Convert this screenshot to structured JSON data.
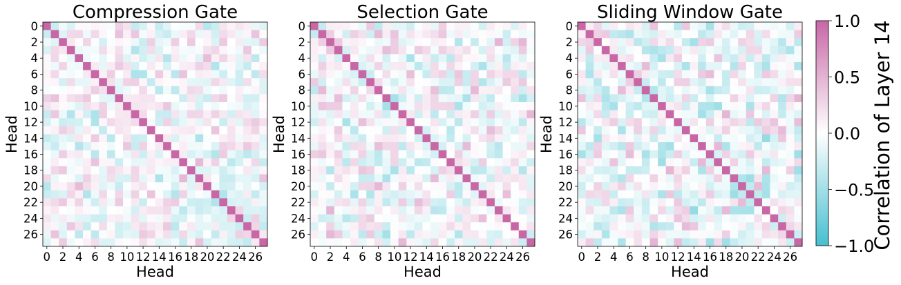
{
  "chart_data": [
    {
      "type": "heatmap",
      "title": "Compression Gate",
      "xlabel": "Head",
      "ylabel": "Head",
      "size": 28,
      "tick_labels": [
        "0",
        "2",
        "4",
        "6",
        "8",
        "10",
        "12",
        "14",
        "16",
        "18",
        "20",
        "22",
        "24",
        "26"
      ],
      "diagonal_value": 1.0,
      "offdiag_seed": 1,
      "offdiag_range": [
        -0.5,
        0.5
      ],
      "offdiag_note": "off-diagonal values are small correlations, mostly between -0.5 and 0.5"
    },
    {
      "type": "heatmap",
      "title": "Selection Gate",
      "xlabel": "Head",
      "ylabel": "Head",
      "size": 28,
      "tick_labels": [
        "0",
        "2",
        "4",
        "6",
        "8",
        "10",
        "12",
        "14",
        "16",
        "18",
        "20",
        "22",
        "24",
        "26"
      ],
      "diagonal_value": 1.0,
      "offdiag_seed": 2,
      "offdiag_range": [
        -0.5,
        0.5
      ],
      "offdiag_note": "off-diagonal values are small correlations, mostly between -0.5 and 0.5"
    },
    {
      "type": "heatmap",
      "title": "Sliding Window Gate",
      "xlabel": "Head",
      "ylabel": "Head",
      "size": 28,
      "tick_labels": [
        "0",
        "2",
        "4",
        "6",
        "8",
        "10",
        "12",
        "14",
        "16",
        "18",
        "20",
        "22",
        "24",
        "26"
      ],
      "diagonal_value": 1.0,
      "offdiag_seed": 3,
      "offdiag_range": [
        -0.6,
        0.5
      ],
      "offdiag_note": "off-diagonal values are small correlations, mostly between -0.6 and 0.5"
    }
  ],
  "colorbar": {
    "label": "Correlation of Layer 14",
    "range": [
      -1.0,
      1.0
    ],
    "ticks": [
      1.0,
      0.5,
      0.0,
      -0.5,
      -1.0
    ],
    "tick_labels": [
      "1.0",
      "0.5",
      "0.0",
      "−0.5",
      "−1.0"
    ],
    "colors": {
      "negative": "#46bfcf",
      "zero": "#ffffff",
      "positive": "#c867a6"
    }
  }
}
